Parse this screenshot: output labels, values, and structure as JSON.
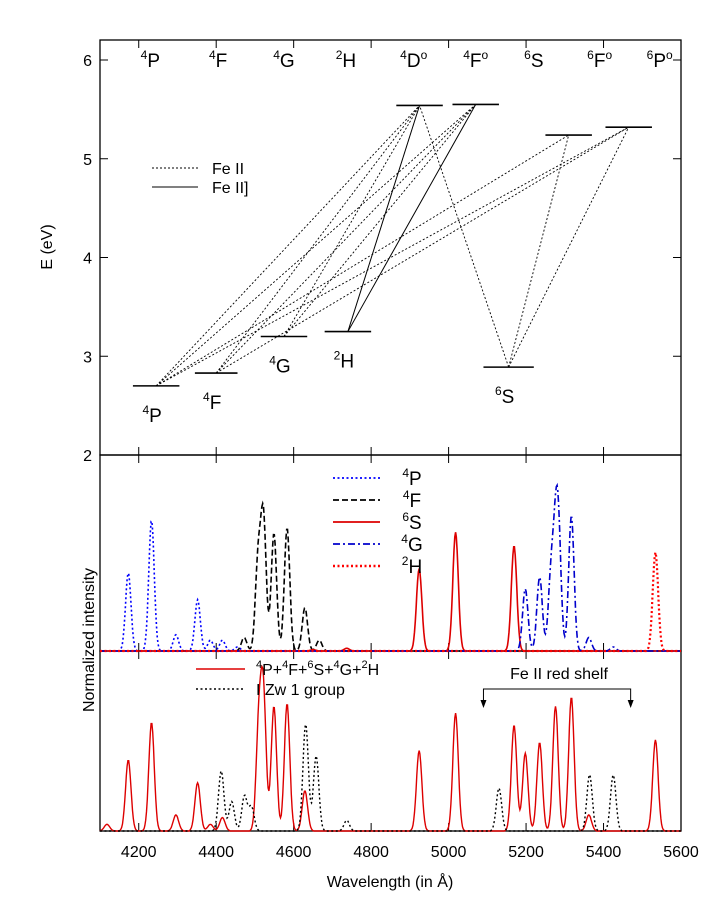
{
  "chart_data": [
    {
      "type": "line",
      "panel": "energy-level-diagram",
      "ylabel": "E (eV)",
      "ylim": [
        2,
        6.2
      ],
      "yticks": [
        2,
        3,
        4,
        5,
        6
      ],
      "top_terms": [
        {
          "mult": "4",
          "letter": "P",
          "odd": false,
          "x": 4230
        },
        {
          "mult": "4",
          "letter": "F",
          "odd": false,
          "x": 4405
        },
        {
          "mult": "4",
          "letter": "G",
          "odd": false,
          "x": 4575
        },
        {
          "mult": "2",
          "letter": "H",
          "odd": false,
          "x": 4735
        },
        {
          "mult": "4",
          "letter": "D",
          "odd": true,
          "x": 4910
        },
        {
          "mult": "4",
          "letter": "F",
          "odd": true,
          "x": 5070
        },
        {
          "mult": "6",
          "letter": "S",
          "odd": false,
          "x": 5220
        },
        {
          "mult": "6",
          "letter": "F",
          "odd": true,
          "x": 5390
        },
        {
          "mult": "6",
          "letter": "P",
          "odd": true,
          "x": 5545
        }
      ],
      "levels": [
        {
          "id": "4P",
          "x": [
            4185,
            4305
          ],
          "E": 2.7,
          "label": {
            "mult": "4",
            "letter": "P"
          }
        },
        {
          "id": "4F",
          "x": [
            4345,
            4455
          ],
          "E": 2.83,
          "label": {
            "mult": "4",
            "letter": "F"
          }
        },
        {
          "id": "4G",
          "x": [
            4515,
            4635
          ],
          "E": 3.2,
          "label": {
            "mult": "4",
            "letter": "G"
          }
        },
        {
          "id": "2H",
          "x": [
            4680,
            4800
          ],
          "E": 3.25,
          "label": {
            "mult": "2",
            "letter": "H"
          }
        },
        {
          "id": "6S",
          "x": [
            5090,
            5220
          ],
          "E": 2.89,
          "label": {
            "mult": "6",
            "letter": "S"
          }
        },
        {
          "id": "4Do",
          "x": [
            4865,
            4985
          ],
          "E": 5.54
        },
        {
          "id": "4Fo",
          "x": [
            5010,
            5130
          ],
          "E": 5.55
        },
        {
          "id": "6Fo",
          "x": [
            5250,
            5370
          ],
          "E": 5.24
        },
        {
          "id": "6Po",
          "x": [
            5405,
            5525
          ],
          "E": 5.32
        }
      ],
      "legend": [
        {
          "label": "Fe II",
          "style": "dotted"
        },
        {
          "label": "Fe II]",
          "style": "solid"
        }
      ],
      "transitions": [
        {
          "from": "4P",
          "to": "4Do",
          "style": "dotted"
        },
        {
          "from": "4P",
          "to": "4Fo",
          "style": "dotted"
        },
        {
          "from": "4P",
          "to": "6Fo",
          "style": "dotted"
        },
        {
          "from": "4P",
          "to": "6Po",
          "style": "dotted"
        },
        {
          "from": "4F",
          "to": "4Do",
          "style": "dotted"
        },
        {
          "from": "4F",
          "to": "4Fo",
          "style": "dotted"
        },
        {
          "from": "4F",
          "to": "6Po",
          "style": "dotted"
        },
        {
          "from": "4G",
          "to": "4Do",
          "style": "dotted"
        },
        {
          "from": "4G",
          "to": "4Fo",
          "style": "dotted"
        },
        {
          "from": "2H",
          "to": "4Do",
          "style": "solid"
        },
        {
          "from": "2H",
          "to": "4Fo",
          "style": "solid"
        },
        {
          "from": "6S",
          "to": "4Do",
          "style": "dotted"
        },
        {
          "from": "6S",
          "to": "6Fo",
          "style": "dotted"
        },
        {
          "from": "6S",
          "to": "6Po",
          "style": "dotted"
        }
      ]
    },
    {
      "type": "line",
      "panel": "multiplet-templates",
      "xlim": [
        4100,
        5600
      ],
      "ylabel": "Normalized intensity",
      "series": [
        {
          "name_mult": "4",
          "name_letter": "P",
          "color": "#0000ff",
          "style": "dotted",
          "peaks": [
            [
              4173,
              0.58
            ],
            [
              4233,
              0.97
            ],
            [
              4296,
              0.12
            ],
            [
              4352,
              0.38
            ],
            [
              4385,
              0.08
            ],
            [
              4416,
              0.08
            ],
            [
              4455,
              0.03
            ]
          ]
        },
        {
          "name_mult": "4",
          "name_letter": "F",
          "color": "#000000",
          "style": "dashed",
          "peaks": [
            [
              4472,
              0.1
            ],
            [
              4508,
              0.66
            ],
            [
              4522,
              0.98
            ],
            [
              4549,
              0.87
            ],
            [
              4583,
              0.91
            ],
            [
              4629,
              0.32
            ],
            [
              4666,
              0.08
            ]
          ]
        },
        {
          "name_mult": "6",
          "name_letter": "S",
          "color": "#dd0000",
          "style": "solid",
          "peaks": [
            [
              4924,
              0.61
            ],
            [
              5018,
              0.88
            ],
            [
              5169,
              0.78
            ],
            [
              4737,
              0.02
            ],
            [
              4650,
              0.01
            ]
          ]
        },
        {
          "name_mult": "4",
          "name_letter": "G",
          "color": "#0000cc",
          "style": "dash-dot",
          "peaks": [
            [
              5198,
              0.46
            ],
            [
              5235,
              0.55
            ],
            [
              5264,
              0.52
            ],
            [
              5276,
              0.66
            ],
            [
              5284,
              0.74
            ],
            [
              5317,
              1.0
            ],
            [
              5362,
              0.1
            ],
            [
              5425,
              0.03
            ]
          ]
        },
        {
          "name_mult": "2",
          "name_letter": "H",
          "color": "#ff0000",
          "style": "dotted",
          "peaks": [
            [
              5534,
              0.73
            ]
          ]
        }
      ]
    },
    {
      "type": "line",
      "panel": "composite-vs-observed",
      "xlim": [
        4100,
        5600
      ],
      "xticks": [
        4200,
        4400,
        4600,
        4800,
        5000,
        5200,
        5400,
        5600
      ],
      "xlabel": "Wavelength (in Å)",
      "annotation": {
        "text": "Fe II red shelf",
        "range": [
          5090,
          5470
        ]
      },
      "series": [
        {
          "label_parts": [
            "4",
            "P+",
            "4",
            "F+",
            "6",
            "S+",
            "4",
            "G+",
            "2",
            "H"
          ],
          "color": "#dd0000",
          "style": "solid",
          "peaks": [
            [
              4118,
              0.05
            ],
            [
              4173,
              0.53
            ],
            [
              4233,
              0.81
            ],
            [
              4296,
              0.12
            ],
            [
              4352,
              0.36
            ],
            [
              4385,
              0.05
            ],
            [
              4416,
              0.1
            ],
            [
              4510,
              0.76
            ],
            [
              4522,
              0.98
            ],
            [
              4549,
              0.93
            ],
            [
              4583,
              0.95
            ],
            [
              4629,
              0.3
            ],
            [
              4924,
              0.6
            ],
            [
              5018,
              0.88
            ],
            [
              5169,
              0.79
            ],
            [
              5198,
              0.58
            ],
            [
              5235,
              0.66
            ],
            [
              5276,
              0.93
            ],
            [
              5317,
              1.0
            ],
            [
              5362,
              0.12
            ],
            [
              5534,
              0.68
            ]
          ]
        },
        {
          "label": "I Zw 1 group",
          "color": "#000000",
          "style": "dotted",
          "peaks": [
            [
              4413,
              0.45
            ],
            [
              4440,
              0.22
            ],
            [
              4473,
              0.26
            ],
            [
              4491,
              0.18
            ],
            [
              4631,
              0.8
            ],
            [
              4658,
              0.56
            ],
            [
              4737,
              0.08
            ],
            [
              5130,
              0.32
            ],
            [
              5364,
              0.42
            ],
            [
              5425,
              0.42
            ]
          ]
        }
      ]
    }
  ]
}
